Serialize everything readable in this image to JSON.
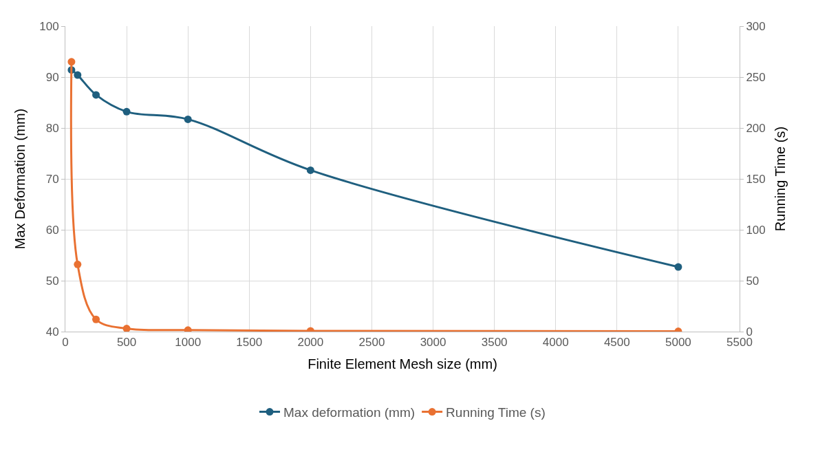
{
  "chart_data": {
    "type": "line",
    "xlabel": "Finite Element Mesh size (mm)",
    "ylabel": "Max Deformation (mm)",
    "y2label": "Running Time (s)",
    "x": [
      50,
      100,
      250,
      500,
      1000,
      2000,
      5000
    ],
    "series": [
      {
        "name": "Max deformation (mm)",
        "color": "#1f5f7f",
        "values": [
          91.4,
          90.4,
          86.5,
          83.2,
          81.7,
          71.7,
          52.7
        ]
      },
      {
        "name": "Running Time (s)",
        "color": "#e97132",
        "axis": "y2",
        "values": [
          265,
          66,
          12,
          3,
          1.5,
          0.7,
          0.3
        ]
      }
    ],
    "xlim": [
      0,
      5500
    ],
    "xticks": [
      0,
      500,
      1000,
      1500,
      2000,
      2500,
      3000,
      3500,
      4000,
      4500,
      5000,
      5500
    ],
    "ylim": [
      40,
      100
    ],
    "yticks": [
      40,
      50,
      60,
      70,
      80,
      90,
      100
    ],
    "y2lim": [
      0,
      300
    ],
    "y2ticks": [
      0,
      50,
      100,
      150,
      200,
      250,
      300
    ],
    "grid": true,
    "legend": "bottom",
    "marker": "circle",
    "line_style": "solid"
  }
}
